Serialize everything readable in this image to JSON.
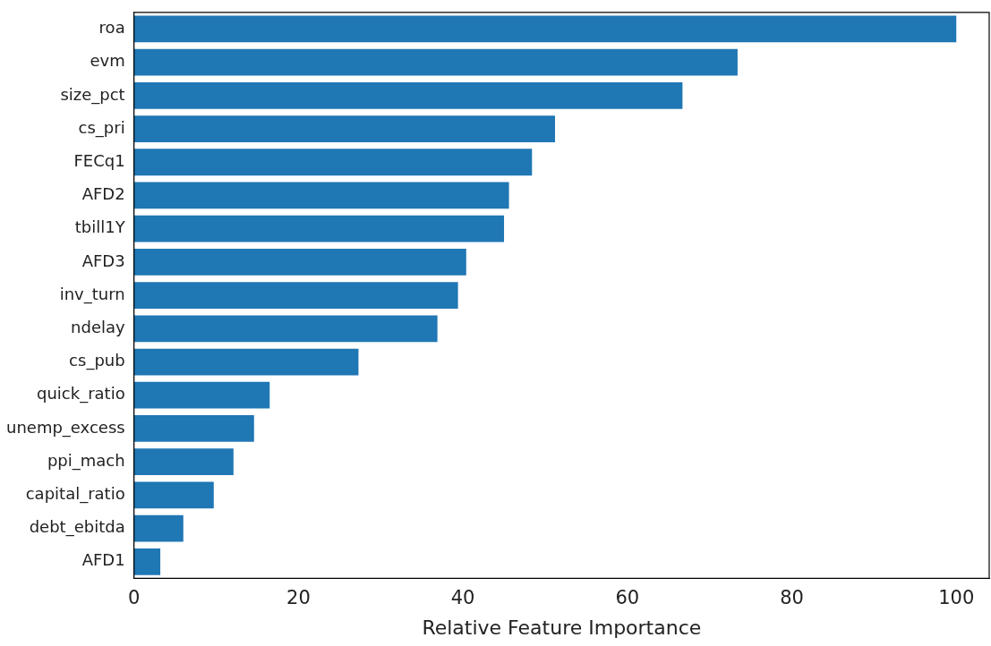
{
  "chart_data": {
    "type": "bar",
    "orientation": "horizontal",
    "xlabel": "Relative Feature Importance",
    "categories": [
      "roa",
      "evm",
      "size_pct",
      "cs_pri",
      "FECq1",
      "AFD2",
      "tbill1Y",
      "AFD3",
      "inv_turn",
      "ndelay",
      "cs_pub",
      "quick_ratio",
      "unemp_excess",
      "ppi_mach",
      "capital_ratio",
      "debt_ebitda",
      "AFD1"
    ],
    "values": [
      100,
      73.4,
      66.7,
      51.2,
      48.4,
      45.6,
      45.0,
      40.4,
      39.4,
      36.9,
      27.3,
      16.5,
      14.6,
      12.1,
      9.7,
      6.0,
      3.2
    ],
    "color": "#1f77b4",
    "xlim": [
      0,
      104
    ],
    "xticks": [
      0,
      20,
      40,
      60,
      80,
      100
    ],
    "grid": false,
    "legend": false
  }
}
